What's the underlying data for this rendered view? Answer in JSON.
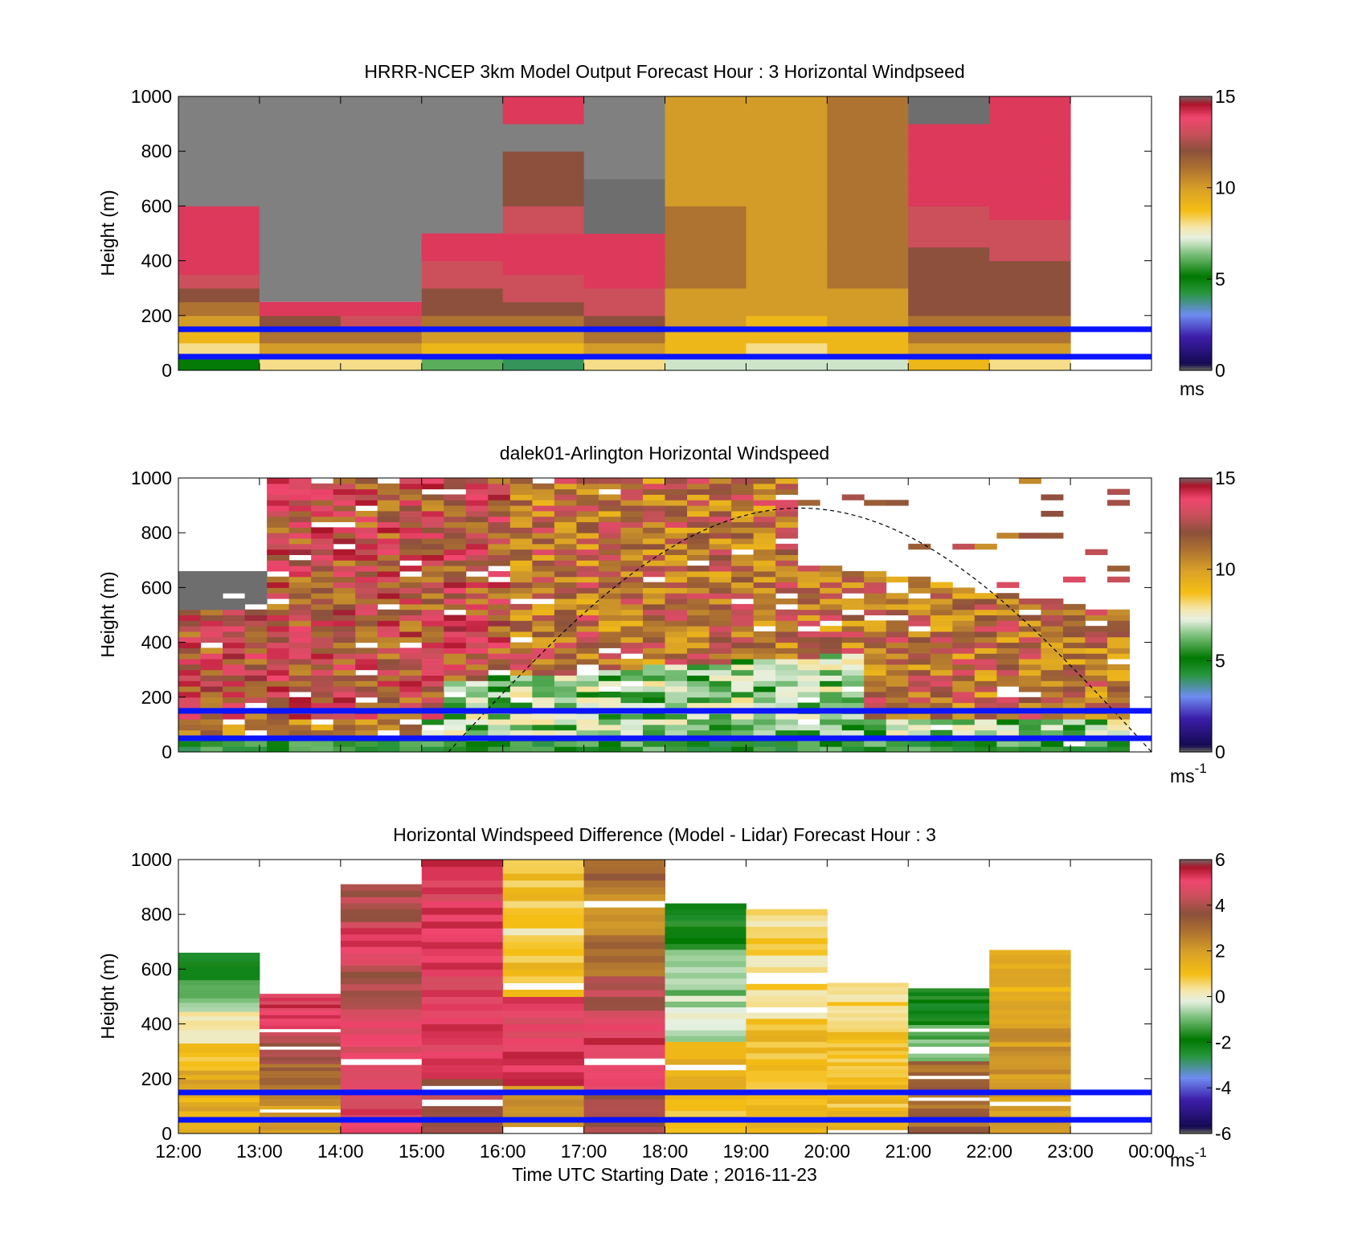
{
  "chart_data": [
    {
      "type": "heatmap",
      "title": "HRRR-NCEP 3km Model Output   Forecast Hour : 3 Horizontal Windpseed",
      "ylabel": "Height (m)",
      "xlabel": "",
      "ylim": [
        0,
        1000
      ],
      "yticks": [
        "0",
        "200",
        "400",
        "600",
        "800",
        "1000"
      ],
      "x": [
        "12:00",
        "13:00",
        "14:00",
        "15:00",
        "16:00",
        "17:00",
        "18:00",
        "19:00",
        "20:00",
        "21:00",
        "22:00",
        "23:00"
      ],
      "colorbar": {
        "range": [
          0,
          15
        ],
        "ticks": [
          "0",
          "5",
          "10",
          "15"
        ],
        "unit": "ms"
      },
      "reference_lines_m": [
        50,
        150
      ],
      "approx_profiles": [
        {
          "time": "12:00",
          "top_m": 1000,
          "values": [
            5,
            8,
            9,
            10,
            11,
            12,
            13,
            14,
            14,
            14,
            14,
            14,
            null,
            null,
            null,
            null,
            null,
            null,
            null,
            null
          ]
        },
        {
          "time": "13:00",
          "top_m": 250,
          "values": [
            8,
            10,
            11,
            12,
            14
          ]
        },
        {
          "time": "14:00",
          "top_m": 250,
          "values": [
            8,
            10,
            11,
            13,
            14
          ]
        },
        {
          "time": "15:00",
          "top_m": 500,
          "values": [
            6,
            9,
            10,
            11,
            12,
            12,
            13,
            13,
            14,
            14
          ]
        },
        {
          "time": "16:00",
          "top_m": 1000,
          "values": [
            4,
            9,
            10,
            11,
            12,
            13,
            13,
            14,
            14,
            14,
            13,
            13,
            12,
            12,
            12,
            12,
            null,
            null,
            14,
            14
          ]
        },
        {
          "time": "17:00",
          "top_m": 700,
          "values": [
            8,
            10,
            11,
            12,
            13,
            13,
            14,
            14,
            14,
            14,
            15,
            15,
            15,
            15
          ]
        },
        {
          "time": "18:00",
          "top_m": 1000,
          "values": [
            7,
            9,
            9,
            10,
            10,
            10,
            11,
            11,
            11,
            11,
            11,
            11,
            10,
            10,
            10,
            10,
            10,
            10,
            10,
            10
          ]
        },
        {
          "time": "19:00",
          "top_m": 1000,
          "values": [
            7,
            8,
            9,
            9,
            10,
            10,
            10,
            10,
            10,
            10,
            10,
            10,
            10,
            10,
            10,
            10,
            10,
            10,
            10,
            10
          ]
        },
        {
          "time": "20:00",
          "top_m": 1000,
          "values": [
            7,
            9,
            9,
            10,
            10,
            10,
            11,
            11,
            11,
            11,
            11,
            11,
            11,
            11,
            11,
            11,
            11,
            11,
            11,
            11
          ]
        },
        {
          "time": "21:00",
          "top_m": 1000,
          "values": [
            9,
            10,
            11,
            11,
            12,
            12,
            12,
            12,
            12,
            13,
            13,
            13,
            14,
            14,
            14,
            14,
            14,
            14,
            15,
            15
          ]
        },
        {
          "time": "22:00",
          "top_m": 1000,
          "values": [
            8,
            10,
            11,
            11,
            12,
            12,
            12,
            12,
            13,
            13,
            13,
            14,
            14,
            14,
            14,
            14,
            14,
            14,
            14,
            14
          ]
        }
      ]
    },
    {
      "type": "heatmap",
      "title": "dalek01-Arlington  Horizontal Windspeed",
      "ylabel": "Height (m)",
      "xlabel": "",
      "ylim": [
        0,
        1000
      ],
      "yticks": [
        "0",
        "200",
        "400",
        "600",
        "800",
        "1000"
      ],
      "xlim": [
        "12:00",
        "00:00"
      ],
      "colorbar": {
        "range": [
          0,
          15
        ],
        "ticks": [
          "0",
          "5",
          "10",
          "15"
        ],
        "unit": "ms",
        "unit_exp": "-1"
      },
      "reference_lines_m": [
        50,
        150
      ],
      "boundary_layer_curve": {
        "style": "dashed",
        "start": "15:20",
        "peak_time": "19:45",
        "peak_m": 890,
        "end": "00:00"
      },
      "description": "Lidar windspeed: 4–7 m/s (greens) below ~250 m during 15:00–20:00, 9–13 m/s (orange/brown/red) aloft, sparse returns above ~600 m after 19:00"
    },
    {
      "type": "heatmap",
      "title": "Horizontal Windspeed Difference (Model - Lidar) Forecast Hour : 3",
      "ylabel": "Height (m)",
      "xlabel": "Time UTC  Starting Date ; 2016-11-23",
      "ylim": [
        0,
        1000
      ],
      "yticks": [
        "0",
        "200",
        "400",
        "600",
        "800",
        "1000"
      ],
      "x": [
        "12:00",
        "13:00",
        "14:00",
        "15:00",
        "16:00",
        "17:00",
        "18:00",
        "19:00",
        "20:00",
        "21:00",
        "22:00",
        "23:00",
        "00:00"
      ],
      "colorbar": {
        "range": [
          -6,
          6
        ],
        "ticks": [
          "-6",
          "-4",
          "-2",
          "0",
          "2",
          "4",
          "6"
        ],
        "unit": "ms",
        "unit_exp": "-1"
      },
      "reference_lines_m": [
        50,
        150
      ],
      "approx_profiles": [
        {
          "time": "12:00",
          "top_m": 660,
          "dominant_values": [
            1.5,
            1.5,
            1,
            0,
            -1,
            -2
          ]
        },
        {
          "time": "13:00",
          "top_m": 510,
          "dominant_values": [
            2,
            3,
            4,
            5
          ]
        },
        {
          "time": "14:00",
          "top_m": 910,
          "dominant_values": [
            5,
            5,
            5,
            4,
            5,
            4
          ]
        },
        {
          "time": "15:00",
          "top_m": 1000,
          "dominant_values": [
            4,
            5,
            5,
            5,
            5
          ]
        },
        {
          "time": "16:00",
          "top_m": 1000,
          "dominant_values": [
            2,
            5,
            5,
            1,
            0.5,
            1
          ]
        },
        {
          "time": "17:00",
          "top_m": 1000,
          "dominant_values": [
            4,
            5,
            5,
            4,
            3,
            2,
            3
          ]
        },
        {
          "time": "18:00",
          "top_m": 840,
          "dominant_values": [
            1,
            1.5,
            -0.5,
            -1,
            -2
          ]
        },
        {
          "time": "19:00",
          "top_m": 840,
          "dominant_values": [
            1,
            1,
            0.5,
            0.5
          ]
        },
        {
          "time": "20:00",
          "top_m": 550,
          "dominant_values": [
            1,
            1,
            0.5
          ]
        },
        {
          "time": "21:00",
          "top_m": 530,
          "dominant_values": [
            3,
            3,
            -1,
            -2
          ]
        },
        {
          "time": "22:00",
          "top_m": 670,
          "dominant_values": [
            2,
            2,
            1.5
          ]
        }
      ]
    }
  ],
  "x_tick_labels": [
    "12:00",
    "13:00",
    "14:00",
    "15:00",
    "16:00",
    "17:00",
    "18:00",
    "19:00",
    "20:00",
    "21:00",
    "22:00",
    "23:00",
    "00:00"
  ]
}
